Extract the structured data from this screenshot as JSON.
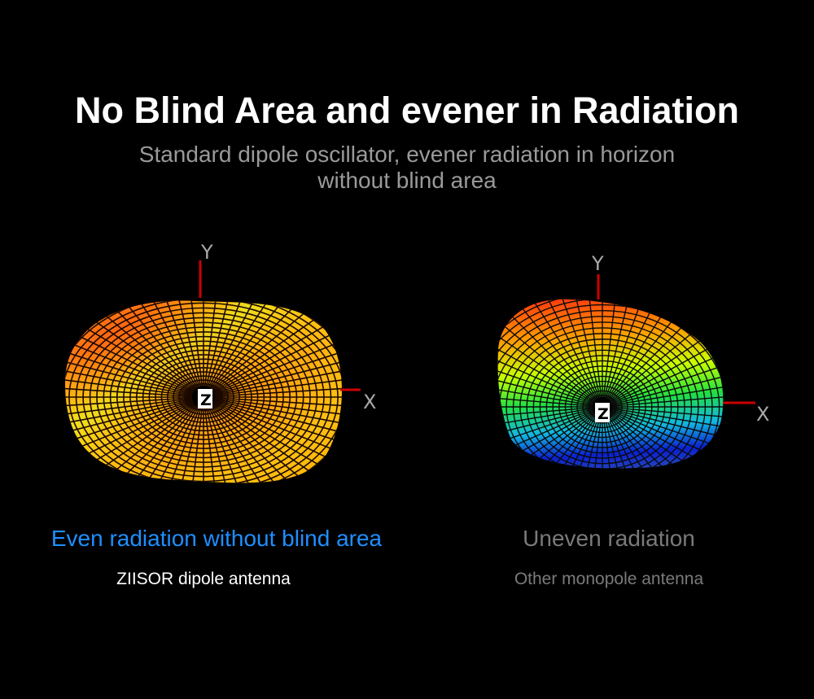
{
  "header": {
    "title": "No Blind Area and evener in Radiation",
    "subtitle_line1": "Standard dipole oscillator, evener radiation in horizon",
    "subtitle_line2": "without blind area"
  },
  "left": {
    "caption": "Even radiation without blind area",
    "label": "ZIISOR dipole antenna",
    "caption_color": "#1e8fff",
    "axes": {
      "x": "X",
      "y": "Y",
      "z": "Z"
    }
  },
  "right": {
    "caption": "Uneven radiation",
    "label": "Other monopole antenna",
    "caption_color": "#7a7a7a",
    "axes": {
      "x": "X",
      "y": "Y",
      "z": "Z"
    }
  },
  "colors": {
    "axis": "#cc0000",
    "background": "#000000"
  }
}
